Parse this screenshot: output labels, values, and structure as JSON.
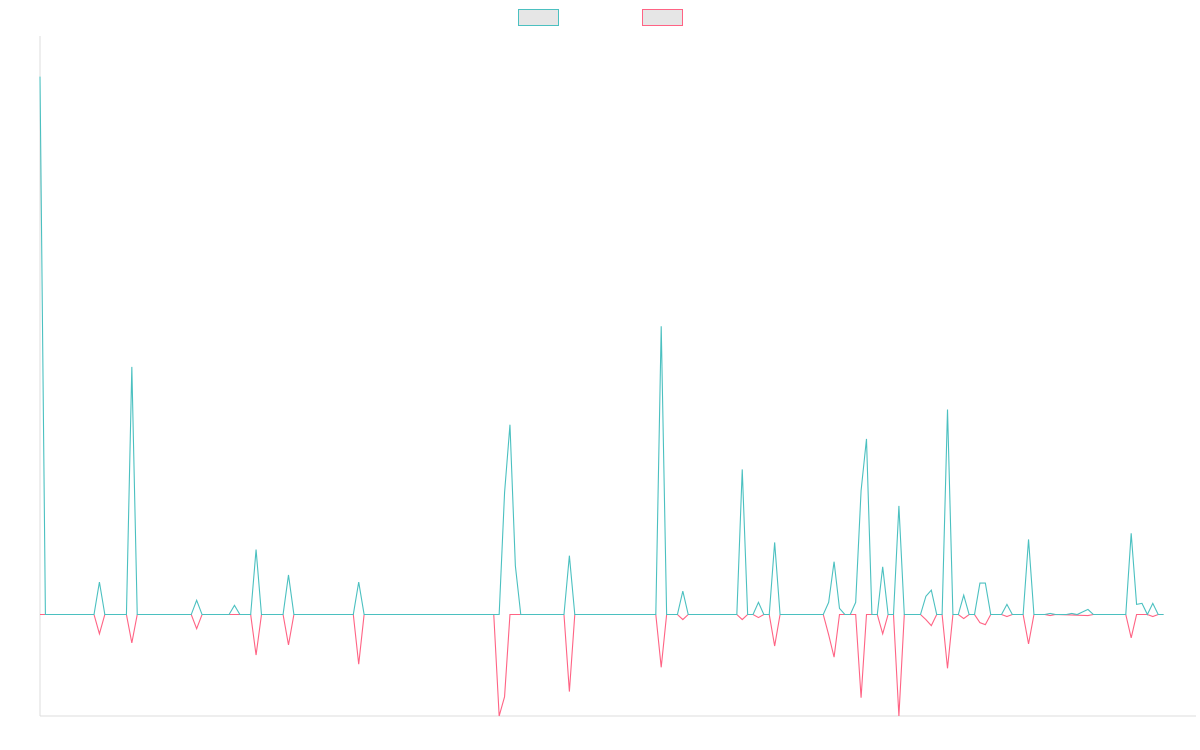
{
  "chart_data": {
    "type": "line",
    "title": "",
    "xlabel": "",
    "ylabel": "",
    "legend_position": "top-center",
    "grid": false,
    "x_count": 214,
    "ylim": [
      -1.0,
      5.7
    ],
    "series": [
      {
        "color": "#4bc0c0",
        "points": [
          [
            0,
            5.3
          ],
          [
            1,
            0
          ],
          [
            10,
            0
          ],
          [
            11,
            0.32
          ],
          [
            12,
            0
          ],
          [
            16,
            0
          ],
          [
            17,
            2.44
          ],
          [
            18,
            0
          ],
          [
            28,
            0
          ],
          [
            29,
            0.14
          ],
          [
            30,
            0
          ],
          [
            35,
            0
          ],
          [
            36,
            0.09
          ],
          [
            37,
            0
          ],
          [
            39,
            0
          ],
          [
            40,
            0.64
          ],
          [
            41,
            0
          ],
          [
            45,
            0
          ],
          [
            46,
            0.39
          ],
          [
            47,
            0
          ],
          [
            58,
            0
          ],
          [
            59,
            0.32
          ],
          [
            60,
            0
          ],
          [
            85,
            0
          ],
          [
            86,
            1.2
          ],
          [
            87,
            1.87
          ],
          [
            88,
            0.48
          ],
          [
            89,
            0
          ],
          [
            97,
            0
          ],
          [
            98,
            0.58
          ],
          [
            99,
            0
          ],
          [
            114,
            0
          ],
          [
            115,
            2.84
          ],
          [
            116,
            0
          ],
          [
            118,
            0
          ],
          [
            119,
            0.23
          ],
          [
            120,
            0
          ],
          [
            129,
            0
          ],
          [
            130,
            1.43
          ],
          [
            131,
            0
          ],
          [
            132,
            0
          ],
          [
            133,
            0.12
          ],
          [
            134,
            0
          ],
          [
            135,
            0
          ],
          [
            136,
            0.71
          ],
          [
            137,
            0
          ],
          [
            145,
            0
          ],
          [
            146,
            0.12
          ],
          [
            147,
            0.52
          ],
          [
            148,
            0.06
          ],
          [
            149,
            0
          ],
          [
            150,
            0
          ],
          [
            151,
            0.12
          ],
          [
            152,
            1.22
          ],
          [
            153,
            1.73
          ],
          [
            154,
            0
          ],
          [
            155,
            0
          ],
          [
            156,
            0.47
          ],
          [
            157,
            0
          ],
          [
            158,
            0
          ],
          [
            159,
            1.07
          ],
          [
            160,
            0
          ],
          [
            163,
            0
          ],
          [
            164,
            0.18
          ],
          [
            165,
            0.24
          ],
          [
            166,
            0
          ],
          [
            167,
            0
          ],
          [
            168,
            2.02
          ],
          [
            169,
            0
          ],
          [
            170,
            0
          ],
          [
            171,
            0.19
          ],
          [
            172,
            0
          ],
          [
            173,
            0
          ],
          [
            174,
            0.31
          ],
          [
            175,
            0.31
          ],
          [
            176,
            0
          ],
          [
            178,
            0
          ],
          [
            179,
            0.1
          ],
          [
            180,
            0
          ],
          [
            182,
            0
          ],
          [
            183,
            0.74
          ],
          [
            184,
            0
          ],
          [
            186,
            0
          ],
          [
            187,
            0.01
          ],
          [
            188,
            0
          ],
          [
            190,
            0
          ],
          [
            191,
            0.01
          ],
          [
            192,
            0
          ],
          [
            194,
            0.05
          ],
          [
            195,
            0
          ],
          [
            201,
            0
          ],
          [
            202,
            0.8
          ],
          [
            203,
            0.1
          ],
          [
            204,
            0.11
          ],
          [
            205,
            0
          ],
          [
            206,
            0.11
          ],
          [
            207,
            0
          ],
          [
            208,
            0
          ]
        ]
      },
      {
        "color": "#ff6384",
        "points": [
          [
            0,
            0
          ],
          [
            10,
            0
          ],
          [
            11,
            -0.19
          ],
          [
            12,
            0
          ],
          [
            16,
            0
          ],
          [
            17,
            -0.28
          ],
          [
            18,
            0
          ],
          [
            28,
            0
          ],
          [
            29,
            -0.14
          ],
          [
            30,
            0
          ],
          [
            39,
            0
          ],
          [
            40,
            -0.4
          ],
          [
            41,
            0
          ],
          [
            45,
            0
          ],
          [
            46,
            -0.3
          ],
          [
            47,
            0
          ],
          [
            58,
            0
          ],
          [
            59,
            -0.49
          ],
          [
            60,
            0
          ],
          [
            84,
            0
          ],
          [
            85,
            -1.0
          ],
          [
            86,
            -0.81
          ],
          [
            87,
            0
          ],
          [
            97,
            0
          ],
          [
            98,
            -0.76
          ],
          [
            99,
            0
          ],
          [
            114,
            0
          ],
          [
            115,
            -0.52
          ],
          [
            116,
            0
          ],
          [
            118,
            0
          ],
          [
            119,
            -0.05
          ],
          [
            120,
            0
          ],
          [
            129,
            0
          ],
          [
            130,
            -0.05
          ],
          [
            131,
            0
          ],
          [
            132,
            0
          ],
          [
            133,
            -0.03
          ],
          [
            134,
            0
          ],
          [
            135,
            0
          ],
          [
            136,
            -0.31
          ],
          [
            137,
            0
          ],
          [
            145,
            0
          ],
          [
            146,
            -0.2
          ],
          [
            147,
            -0.42
          ],
          [
            148,
            0
          ],
          [
            150,
            0
          ],
          [
            151,
            0
          ],
          [
            152,
            -0.82
          ],
          [
            153,
            0
          ],
          [
            155,
            0
          ],
          [
            156,
            -0.19
          ],
          [
            157,
            0
          ],
          [
            158,
            0
          ],
          [
            159,
            -1.0
          ],
          [
            160,
            0
          ],
          [
            163,
            0
          ],
          [
            164,
            -0.05
          ],
          [
            165,
            -0.11
          ],
          [
            166,
            0
          ],
          [
            167,
            0
          ],
          [
            168,
            -0.53
          ],
          [
            169,
            0
          ],
          [
            170,
            0
          ],
          [
            171,
            -0.04
          ],
          [
            172,
            0
          ],
          [
            173,
            0
          ],
          [
            174,
            -0.08
          ],
          [
            175,
            -0.1
          ],
          [
            176,
            0
          ],
          [
            178,
            0
          ],
          [
            179,
            -0.02
          ],
          [
            180,
            0
          ],
          [
            182,
            0
          ],
          [
            183,
            -0.29
          ],
          [
            184,
            0
          ],
          [
            186,
            0
          ],
          [
            187,
            -0.01
          ],
          [
            188,
            0
          ],
          [
            194,
            -0.01
          ],
          [
            195,
            0
          ],
          [
            201,
            0
          ],
          [
            202,
            -0.23
          ],
          [
            203,
            0
          ],
          [
            205,
            0
          ],
          [
            206,
            -0.02
          ],
          [
            207,
            0
          ],
          [
            208,
            0
          ]
        ]
      }
    ]
  }
}
